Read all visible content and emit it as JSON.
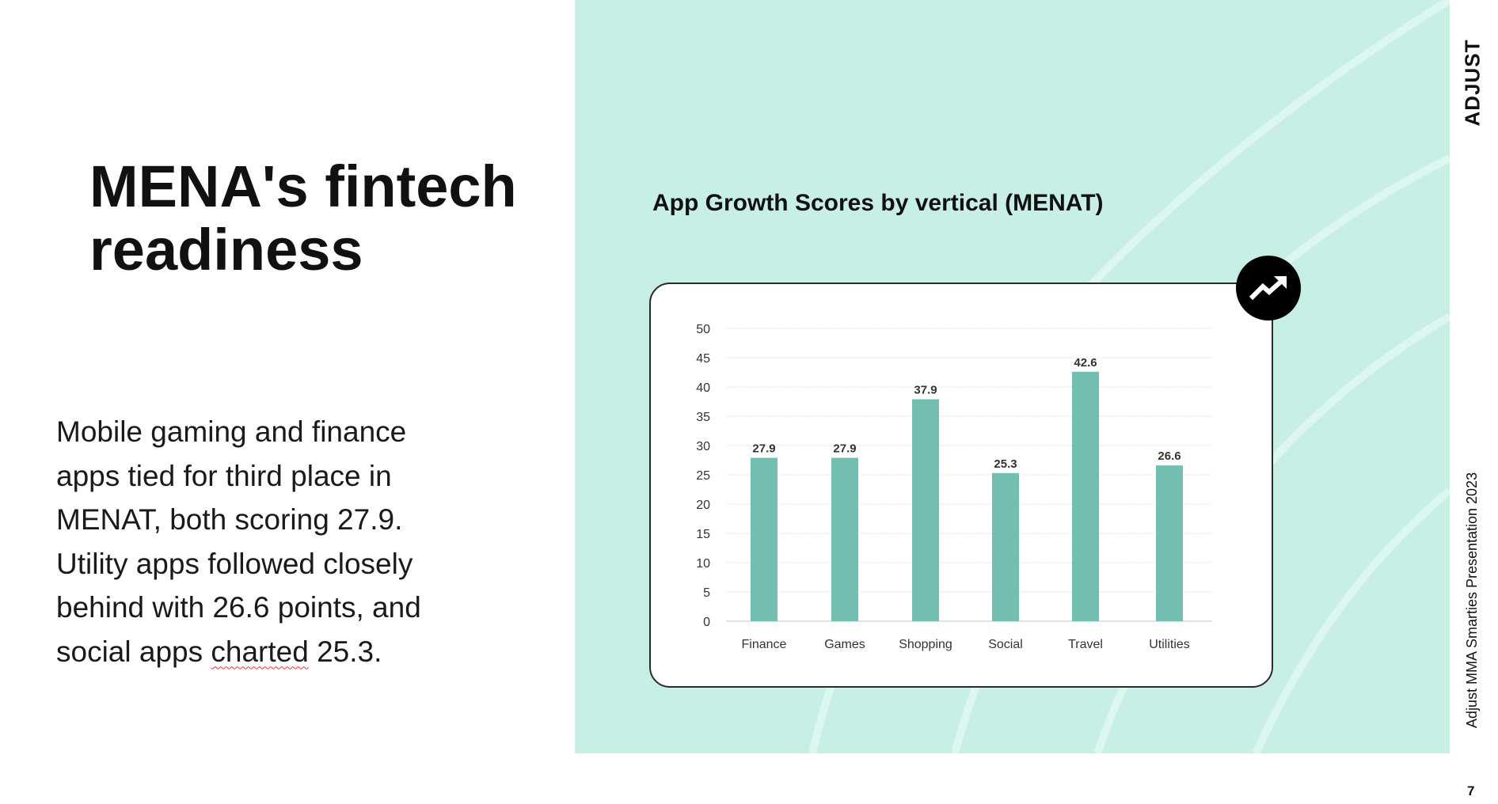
{
  "slide": {
    "title": "MENA's fintech readiness",
    "body_before": "Mobile gaming and finance apps tied for third place in MENAT, both scoring 27.9. Utility apps followed closely behind with 26.6 points, and social apps ",
    "body_squiggle": "charted",
    "body_after": " 25.3.",
    "logo": "ADJUST",
    "footer": "Adjust MMA Smarties Presentation 2023",
    "page_number": "7",
    "panel_color": "#c8efe6"
  },
  "chart_data": {
    "type": "bar",
    "title": "App Growth Scores by vertical (MENAT)",
    "categories": [
      "Finance",
      "Games",
      "Shopping",
      "Social",
      "Travel",
      "Utilities"
    ],
    "values": [
      27.9,
      27.9,
      37.9,
      25.3,
      42.6,
      26.6
    ],
    "value_labels": [
      "27.9",
      "27.9",
      "37.9",
      "25.3",
      "42.6",
      "26.6"
    ],
    "yticks": [
      0,
      5,
      10,
      15,
      20,
      25,
      30,
      35,
      40,
      45,
      50
    ],
    "ylim": [
      0,
      50
    ],
    "xlabel": "",
    "ylabel": "",
    "grid": true,
    "bar_color": "#72bfb2",
    "icon": "trending-up-icon"
  }
}
